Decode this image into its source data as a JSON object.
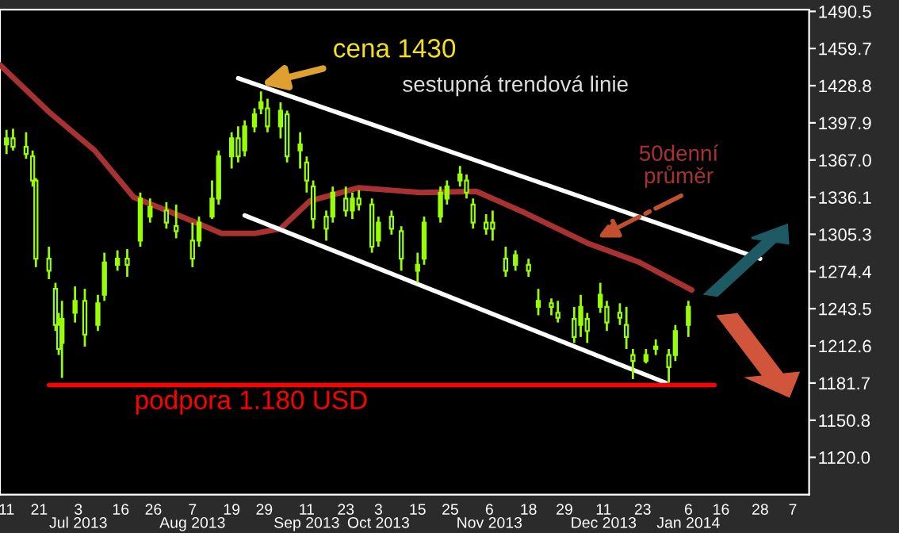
{
  "chart_data": {
    "type": "candlestick",
    "x": [
      "2013-06-11",
      "2013-06-13",
      "2013-06-17",
      "2013-06-19",
      "2013-06-20",
      "2013-06-24",
      "2013-06-26",
      "2013-06-27",
      "2013-06-28",
      "2013-07-02",
      "2013-07-05",
      "2013-07-09",
      "2013-07-11",
      "2013-07-15",
      "2013-07-18",
      "2013-07-22",
      "2013-07-25",
      "2013-07-30",
      "2013-08-02",
      "2013-08-07",
      "2013-08-09",
      "2013-08-13",
      "2013-08-15",
      "2013-08-19",
      "2013-08-21",
      "2013-08-23",
      "2013-08-26",
      "2013-08-28",
      "2013-08-30",
      "2013-09-03",
      "2013-09-05",
      "2013-09-09",
      "2013-09-11",
      "2013-09-13",
      "2013-09-17",
      "2013-09-19",
      "2013-09-23",
      "2013-09-25",
      "2013-09-27",
      "2013-10-01",
      "2013-10-03",
      "2013-10-07",
      "2013-10-10",
      "2013-10-15",
      "2013-10-17",
      "2013-10-22",
      "2013-10-24",
      "2013-10-28",
      "2013-10-30",
      "2013-11-01",
      "2013-11-05",
      "2013-11-07",
      "2013-11-11",
      "2013-11-14",
      "2013-11-18",
      "2013-11-21",
      "2013-11-25",
      "2013-11-27",
      "2013-12-02",
      "2013-12-04",
      "2013-12-06",
      "2013-12-10",
      "2013-12-12",
      "2013-12-16",
      "2013-12-18",
      "2013-12-20",
      "2013-12-24",
      "2013-12-27",
      "2013-12-31",
      "2014-01-02",
      "2014-01-06"
    ],
    "ohlc": [
      [
        1380,
        1392,
        1372,
        1385
      ],
      [
        1385,
        1393,
        1375,
        1378
      ],
      [
        1378,
        1390,
        1368,
        1372
      ],
      [
        1370,
        1375,
        1345,
        1350
      ],
      [
        1350,
        1352,
        1278,
        1285
      ],
      [
        1285,
        1295,
        1268,
        1275
      ],
      [
        1260,
        1265,
        1225,
        1230
      ],
      [
        1230,
        1240,
        1205,
        1210
      ],
      [
        1215,
        1250,
        1186,
        1235
      ],
      [
        1240,
        1262,
        1232,
        1250
      ],
      [
        1250,
        1260,
        1212,
        1222
      ],
      [
        1230,
        1255,
        1225,
        1248
      ],
      [
        1255,
        1290,
        1250,
        1282
      ],
      [
        1280,
        1292,
        1275,
        1285
      ],
      [
        1285,
        1293,
        1270,
        1280
      ],
      [
        1300,
        1340,
        1295,
        1335
      ],
      [
        1320,
        1335,
        1315,
        1328
      ],
      [
        1325,
        1332,
        1310,
        1315
      ],
      [
        1312,
        1330,
        1302,
        1308
      ],
      [
        1300,
        1315,
        1278,
        1285
      ],
      [
        1300,
        1320,
        1295,
        1315
      ],
      [
        1320,
        1350,
        1318,
        1335
      ],
      [
        1335,
        1375,
        1330,
        1370
      ],
      [
        1370,
        1390,
        1360,
        1385
      ],
      [
        1385,
        1395,
        1365,
        1370
      ],
      [
        1375,
        1400,
        1370,
        1395
      ],
      [
        1395,
        1410,
        1390,
        1405
      ],
      [
        1410,
        1424,
        1405,
        1415
      ],
      [
        1410,
        1418,
        1390,
        1395
      ],
      [
        1395,
        1415,
        1385,
        1408
      ],
      [
        1405,
        1408,
        1365,
        1370
      ],
      [
        1375,
        1390,
        1360,
        1380
      ],
      [
        1365,
        1370,
        1340,
        1350
      ],
      [
        1345,
        1350,
        1310,
        1318
      ],
      [
        1320,
        1325,
        1300,
        1310
      ],
      [
        1320,
        1345,
        1315,
        1340
      ],
      [
        1335,
        1345,
        1320,
        1325
      ],
      [
        1325,
        1340,
        1318,
        1335
      ],
      [
        1335,
        1342,
        1325,
        1330
      ],
      [
        1330,
        1335,
        1290,
        1295
      ],
      [
        1300,
        1320,
        1295,
        1315
      ],
      [
        1320,
        1325,
        1305,
        1310
      ],
      [
        1308,
        1312,
        1275,
        1285
      ],
      [
        1275,
        1290,
        1265,
        1280
      ],
      [
        1285,
        1320,
        1280,
        1315
      ],
      [
        1320,
        1345,
        1315,
        1340
      ],
      [
        1335,
        1350,
        1330,
        1345
      ],
      [
        1350,
        1362,
        1345,
        1355
      ],
      [
        1350,
        1355,
        1335,
        1340
      ],
      [
        1330,
        1335,
        1310,
        1315
      ],
      [
        1315,
        1322,
        1305,
        1310
      ],
      [
        1315,
        1325,
        1300,
        1310
      ],
      [
        1285,
        1295,
        1270,
        1275
      ],
      [
        1280,
        1292,
        1275,
        1288
      ],
      [
        1280,
        1285,
        1270,
        1275
      ],
      [
        1245,
        1260,
        1238,
        1250
      ],
      [
        1248,
        1252,
        1238,
        1245
      ],
      [
        1240,
        1250,
        1232,
        1236
      ],
      [
        1235,
        1245,
        1215,
        1220
      ],
      [
        1230,
        1255,
        1220,
        1245
      ],
      [
        1235,
        1240,
        1215,
        1225
      ],
      [
        1245,
        1265,
        1240,
        1255
      ],
      [
        1245,
        1250,
        1225,
        1232
      ],
      [
        1240,
        1248,
        1230,
        1236
      ],
      [
        1230,
        1245,
        1210,
        1220
      ],
      [
        1205,
        1210,
        1185,
        1200
      ],
      [
        1200,
        1210,
        1198,
        1205
      ],
      [
        1210,
        1218,
        1205,
        1212
      ],
      [
        1205,
        1210,
        1182,
        1195
      ],
      [
        1205,
        1230,
        1200,
        1225
      ],
      [
        1230,
        1250,
        1220,
        1245
      ]
    ],
    "color": "#99ff00",
    "series": [
      {
        "type": "line",
        "name": "50denní průměr",
        "color": "#a83232",
        "x": [
          "2013-06-09",
          "2013-06-24",
          "2013-07-08",
          "2013-07-20",
          "2013-08-01",
          "2013-08-16",
          "2013-08-26",
          "2013-09-03",
          "2013-09-12",
          "2013-09-27",
          "2013-10-16",
          "2013-11-02",
          "2013-11-17",
          "2013-12-06",
          "2013-12-22",
          "2014-01-07"
        ],
        "values": [
          1446,
          1407,
          1375,
          1336,
          1323,
          1306,
          1306,
          1310,
          1333,
          1344,
          1340,
          1341,
          1323,
          1298,
          1282,
          1259
        ]
      },
      {
        "type": "line",
        "name": "sestupná trendová linie",
        "color": "#ffffff",
        "x": [
          "2013-08-21",
          "2014-01-28"
        ],
        "values": [
          1435,
          1285
        ]
      },
      {
        "type": "line",
        "color": "#ffffff",
        "x": [
          "2013-08-23",
          "2013-12-30"
        ],
        "values": [
          1321,
          1182
        ]
      },
      {
        "type": "line",
        "name": "podpora 1.180 USD",
        "color": "#ff0000",
        "x": [
          "2013-06-24",
          "2014-01-14"
        ],
        "values": [
          1180,
          1180
        ]
      }
    ],
    "annotations": [
      {
        "text": "cena 1430",
        "x": "2013-08-28",
        "y": 1430
      }
    ],
    "xlim": [
      "2013-06-09",
      "2014-02-12"
    ],
    "xticks": [
      {
        "value": "2013-06-11",
        "label": "11"
      },
      {
        "value": "2013-06-21",
        "label": "21"
      },
      {
        "value": "2013-07-03",
        "label": "3\nJul 2013"
      },
      {
        "value": "2013-07-16",
        "label": "16"
      },
      {
        "value": "2013-07-26",
        "label": "26"
      },
      {
        "value": "2013-08-07",
        "label": "7\nAug 2013"
      },
      {
        "value": "2013-08-19",
        "label": "19"
      },
      {
        "value": "2013-08-29",
        "label": "29"
      },
      {
        "value": "2013-09-11",
        "label": "11\nSep 2013"
      },
      {
        "value": "2013-09-23",
        "label": "23"
      },
      {
        "value": "2013-10-03",
        "label": "3\nOct 2013"
      },
      {
        "value": "2013-10-15",
        "label": "15"
      },
      {
        "value": "2013-10-25",
        "label": "25"
      },
      {
        "value": "2013-11-06",
        "label": "6\nNov 2013"
      },
      {
        "value": "2013-11-18",
        "label": "18"
      },
      {
        "value": "2013-11-29",
        "label": "29"
      },
      {
        "value": "2013-12-11",
        "label": "11\nDec 2013"
      },
      {
        "value": "2013-12-23",
        "label": "23"
      },
      {
        "value": "2014-01-06",
        "label": "6\nJan 2014"
      },
      {
        "value": "2014-01-16",
        "label": "16"
      },
      {
        "value": "2014-01-28",
        "label": "28"
      },
      {
        "value": "2014-02-07",
        "label": "7"
      }
    ],
    "ylim": [
      1089,
      1492
    ],
    "yticks": [
      1490.5,
      1459.7,
      1428.8,
      1397.9,
      {
        "value": 1367,
        "label": "1367.0"
      },
      1336.1,
      1305.3,
      1274.4,
      1243.5,
      1212.6,
      1181.7,
      1150.8,
      {
        "value": 1120,
        "label": "1120.0"
      }
    ],
    "grid": false,
    "legend": false
  }
}
